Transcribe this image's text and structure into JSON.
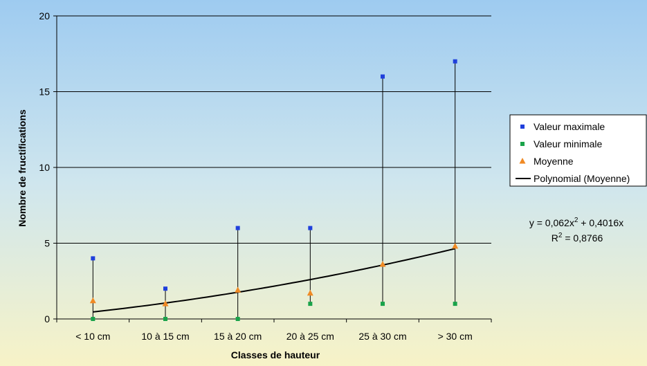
{
  "chart_data": {
    "type": "scatter",
    "categories": [
      "< 10 cm",
      "10 à 15 cm",
      "15 à 20 cm",
      "20 à 25 cm",
      "25 à 30 cm",
      "> 30 cm"
    ],
    "xlabel": "Classes de hauteur",
    "ylabel": "Nombre de fructifications",
    "ylim": [
      0,
      20
    ],
    "yticks": [
      0,
      5,
      10,
      15,
      20
    ],
    "grid": "horizontal",
    "legend_position": "right",
    "series": [
      {
        "name": "Valeur maximale",
        "marker": "square",
        "color": "#1f3fdc",
        "values": [
          4,
          2,
          6,
          6,
          16,
          17
        ]
      },
      {
        "name": "Valeur minimale",
        "marker": "square",
        "color": "#1aa34a",
        "values": [
          0,
          0,
          0,
          1,
          1,
          1
        ]
      },
      {
        "name": "Moyenne",
        "marker": "triangle",
        "color": "#f08a24",
        "values": [
          1.2,
          1.0,
          1.9,
          1.7,
          3.6,
          4.8
        ]
      },
      {
        "name": "Polynomial (Moyenne)",
        "type": "trendline",
        "color": "#000000",
        "coefficients": {
          "a": 0.062,
          "b": 0.4016
        }
      }
    ],
    "annotation": {
      "equation_prefix": "y = 0,062x",
      "equation_exp": "2",
      "equation_suffix": " + 0,4016x",
      "r2_prefix": "R",
      "r2_exp": "2",
      "r2_suffix": " = 0,8766"
    }
  }
}
